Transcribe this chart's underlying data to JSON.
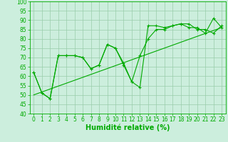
{
  "title": "",
  "xlabel": "Humidité relative (%)",
  "ylabel": "",
  "bg_color": "#cceedd",
  "grid_color": "#99ccaa",
  "line_color": "#00aa00",
  "ylim": [
    40,
    100
  ],
  "xlim": [
    -0.5,
    23.5
  ],
  "yticks": [
    40,
    45,
    50,
    55,
    60,
    65,
    70,
    75,
    80,
    85,
    90,
    95,
    100
  ],
  "xticks": [
    0,
    1,
    2,
    3,
    4,
    5,
    6,
    7,
    8,
    9,
    10,
    11,
    12,
    13,
    14,
    15,
    16,
    17,
    18,
    19,
    20,
    21,
    22,
    23
  ],
  "series1": [
    62,
    51,
    48,
    71,
    71,
    71,
    70,
    64,
    66,
    77,
    75,
    66,
    57,
    54,
    87,
    87,
    86,
    87,
    88,
    88,
    85,
    85,
    83,
    87
  ],
  "series2": [
    62,
    51,
    48,
    71,
    71,
    71,
    70,
    64,
    66,
    77,
    75,
    67,
    57,
    71,
    80,
    85,
    85,
    87,
    88,
    86,
    86,
    83,
    91,
    86
  ],
  "trend_x": [
    0,
    23
  ],
  "trend_y": [
    50,
    86
  ],
  "xlabel_fontsize": 7,
  "tick_fontsize": 5.5
}
